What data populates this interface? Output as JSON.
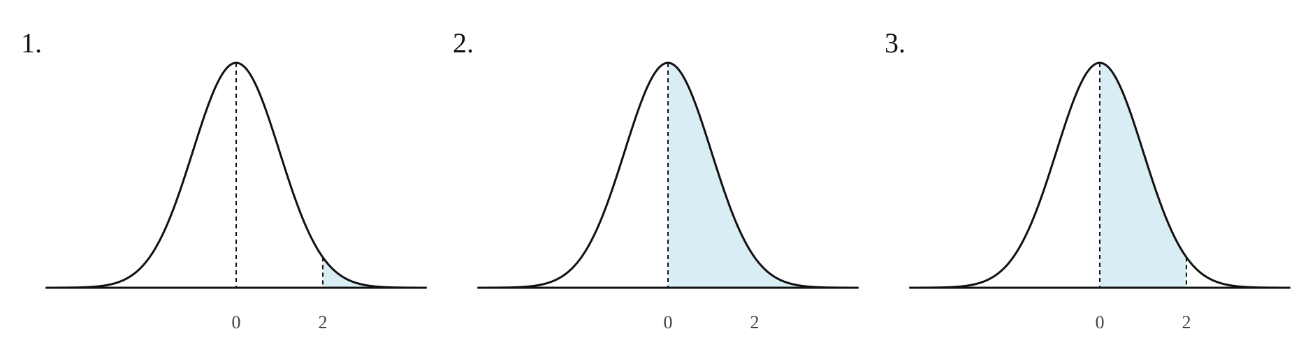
{
  "figure": {
    "colors": {
      "curve": "#111111",
      "fill": "#d9edf4",
      "axis": "#111111",
      "dashed": "#111111",
      "tick_text": "#444444"
    },
    "panels": [
      {
        "label": "1.",
        "shade_from": 2,
        "shade_to": 4,
        "ticks": [
          {
            "value": 0,
            "label": "0"
          },
          {
            "value": 2,
            "label": "2"
          }
        ],
        "dashed_at": [
          0,
          2
        ]
      },
      {
        "label": "2.",
        "shade_from": 0,
        "shade_to": 4,
        "ticks": [
          {
            "value": 0,
            "label": "0"
          },
          {
            "value": 2,
            "label": "2"
          }
        ],
        "dashed_at": [
          0
        ]
      },
      {
        "label": "3.",
        "shade_from": 0,
        "shade_to": 2,
        "ticks": [
          {
            "value": 0,
            "label": "0"
          },
          {
            "value": 2,
            "label": "2"
          }
        ],
        "dashed_at": [
          0,
          2
        ]
      }
    ],
    "x_range": [
      -4.4,
      4.4
    ],
    "distribution": "standard-normal"
  }
}
